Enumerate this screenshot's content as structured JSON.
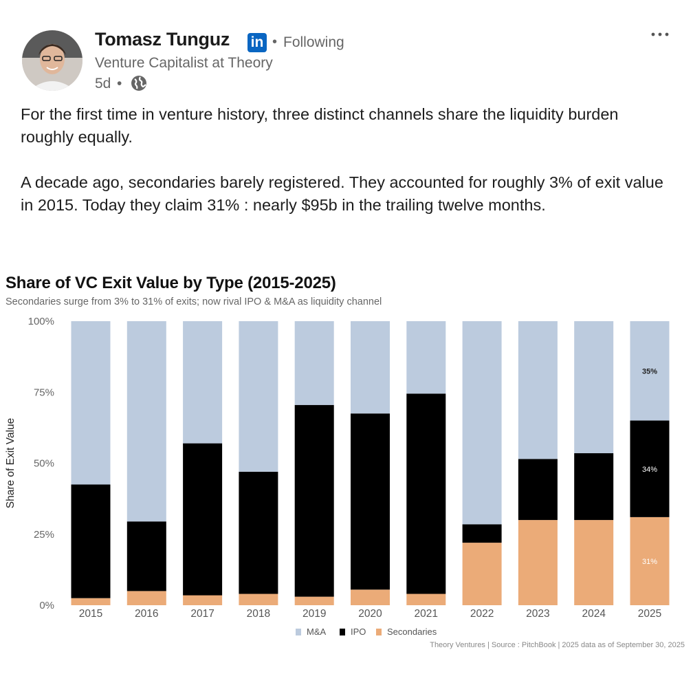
{
  "post": {
    "author": {
      "name": "Tomasz Tunguz",
      "network_badge": "in",
      "follow_separator": "•",
      "follow_status": "Following",
      "headline": "Venture Capitalist at Theory",
      "time": "5d",
      "time_separator": "•",
      "visibility_icon": "globe-icon"
    },
    "more_icon": "more-horizontal-icon",
    "text": {
      "paragraph_1": "For the first time in venture history, three distinct channels share the liquidity burden roughly equally.",
      "paragraph_2": "A decade ago, secondaries barely registered. They accounted for roughly 3% of exit value in 2015. Today they claim 31% : nearly $95b in the trailing twelve months."
    },
    "colors": {
      "linkedin_blue": "#0a66c2",
      "secondary_text": "#666666"
    }
  },
  "chart_data": {
    "type": "bar",
    "stacked": true,
    "title": "Share of VC Exit Value by Type (2015-2025)",
    "subtitle": "Secondaries surge from 3% to 31% of exits; now rival IPO & M&A as liquidity channel",
    "ylabel": "Share of Exit Value",
    "xlabel": "",
    "ylim": [
      0,
      100
    ],
    "yticks": [
      "0%",
      "25%",
      "50%",
      "75%",
      "100%"
    ],
    "ytick_values": [
      0,
      25,
      50,
      75,
      100
    ],
    "categories": [
      "2015",
      "2016",
      "2017",
      "2018",
      "2019",
      "2020",
      "2021",
      "2022",
      "2023",
      "2024",
      "2025"
    ],
    "series": [
      {
        "name": "Secondaries",
        "color": "#ebab78",
        "values": [
          2.5,
          5,
          3.5,
          4,
          3,
          5.5,
          4,
          22,
          30,
          30,
          31
        ]
      },
      {
        "name": "IPO",
        "color": "#000000",
        "values": [
          40,
          24.5,
          53.5,
          43,
          67.5,
          62,
          70.5,
          6.5,
          21.5,
          23.5,
          34
        ]
      },
      {
        "name": "M&A",
        "color": "#bccbde",
        "values": [
          57.5,
          70.5,
          43,
          53,
          29.5,
          32.5,
          25.5,
          71.5,
          48.5,
          46.5,
          35
        ]
      }
    ],
    "legend": [
      "M&A",
      "IPO",
      "Secondaries"
    ],
    "legend_placement": "bottom-center",
    "grid": false,
    "data_labels": [
      {
        "category": "2025",
        "series": "M&A",
        "text": "35%"
      },
      {
        "category": "2025",
        "series": "IPO",
        "text": "34%"
      },
      {
        "category": "2025",
        "series": "Secondaries",
        "text": "31%"
      }
    ],
    "source": "Theory Ventures | Source : PitchBook | 2025 data as of September 30, 2025"
  }
}
